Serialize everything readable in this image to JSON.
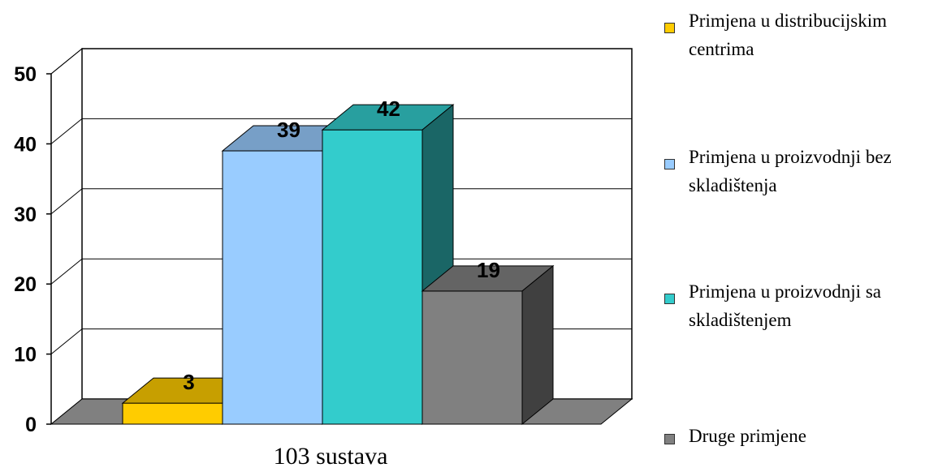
{
  "chart_data": {
    "type": "bar",
    "title": "",
    "xlabel": "",
    "ylabel": "",
    "categories": [
      "103 sustava"
    ],
    "ylim": [
      0,
      50
    ],
    "yticks": [
      0,
      10,
      20,
      30,
      40,
      50
    ],
    "grid": true,
    "legend_position": "right",
    "series": [
      {
        "name": "Primjena u distribucijskim centrima",
        "values": [
          3
        ],
        "color": "#FFCC00"
      },
      {
        "name": "Primjena u proizvodnji bez skladištenja",
        "values": [
          39
        ],
        "color": "#99CCFF"
      },
      {
        "name": "Primjena u proizvodnji sa skladištenjem",
        "values": [
          42
        ],
        "color": "#33CCCC"
      },
      {
        "name": "Druge primjene",
        "values": [
          19
        ],
        "color": "#808080"
      }
    ]
  }
}
